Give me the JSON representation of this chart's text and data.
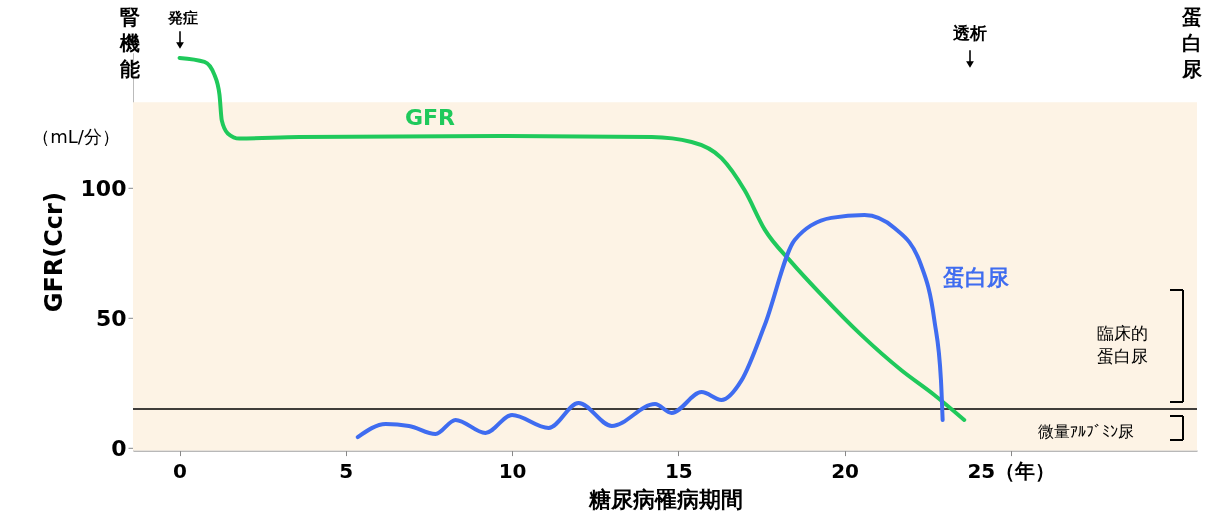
{
  "chart_data": {
    "type": "line",
    "xlabel": "糖尿病罹病期間",
    "ylabel": "GFR(Ccr)",
    "annotations": [
      "腎機能",
      "（mL/分）",
      "発症",
      "透析",
      "蛋白尿",
      "臨床的蛋白尿",
      "微量ｱﾙﾌﾞﾐﾝ尿"
    ],
    "xlim": [
      -1.4,
      30.6
    ],
    "ylim": [
      -1,
      152
    ],
    "xticks": [
      0,
      5,
      10,
      15,
      20,
      {
        "value": 25,
        "label": "25（年）"
      }
    ],
    "yticks": [
      0,
      50,
      100
    ],
    "bands": [
      {
        "axis": "y",
        "from": -1,
        "to": 133,
        "color": "#fdf3e5"
      }
    ],
    "ref_lines": [
      {
        "axis": "y",
        "value": 15,
        "color": "#000000"
      }
    ],
    "series": [
      {
        "name": "GFR",
        "color": "#1fc95b",
        "x": [
          0,
          0.75,
          1.05,
          1.2,
          1.27,
          1.45,
          1.8,
          3.6,
          9.6,
          14.2,
          15.4,
          16.3,
          17.0,
          17.6,
          18.4,
          19.3,
          20.5,
          21.7,
          22.7,
          23.6
        ],
        "values": [
          150,
          148.5,
          143.5,
          136,
          126,
          121,
          119,
          119.6,
          120,
          119.6,
          117.7,
          111.5,
          99,
          84,
          71.5,
          59,
          43.5,
          30,
          20.4,
          10.8
        ]
      },
      {
        "name": "蛋白尿",
        "color": "#3f6cf0",
        "x": [
          5.36,
          6.2,
          6.9,
          7.7,
          8.3,
          9.2,
          10.0,
          11.1,
          12.0,
          13.0,
          14.3,
          14.8,
          15.7,
          16.3,
          16.9,
          17.6,
          18.5,
          19.6,
          20.6,
          21.5,
          22.3,
          22.7,
          22.9,
          22.95
        ],
        "values": [
          4.2,
          9.2,
          8.5,
          5.4,
          10.8,
          5.8,
          12.7,
          7.7,
          17.3,
          8.5,
          16.9,
          13.5,
          21.5,
          18.5,
          26,
          47.3,
          80,
          88.5,
          89.6,
          84.6,
          70.4,
          49.2,
          26,
          10.8
        ]
      }
    ]
  }
}
